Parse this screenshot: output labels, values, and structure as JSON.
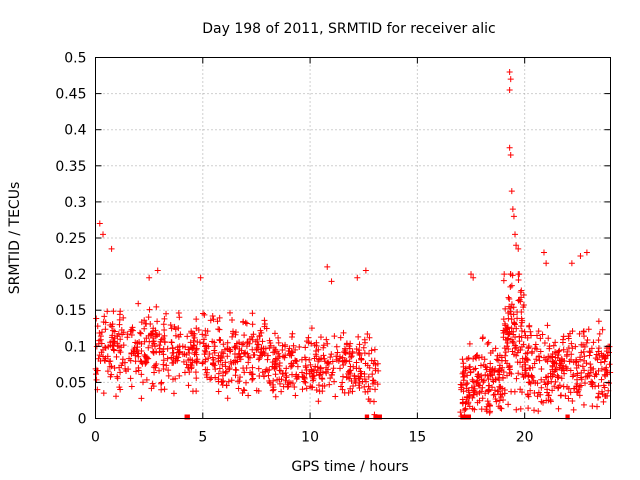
{
  "chart_data": {
    "type": "scatter",
    "title": "Day 198 of 2011, SRMTID for receiver alic",
    "xlabel": "GPS time / hours",
    "ylabel": "SRMTID / TECUs",
    "xlim": [
      0,
      24
    ],
    "ylim": [
      0,
      0.5
    ],
    "xticks": [
      "0",
      "5",
      "10",
      "15",
      "20"
    ],
    "xtick_values": [
      0,
      5,
      10,
      15,
      20
    ],
    "yticks": [
      "0",
      "0.05",
      "0.1",
      "0.15",
      "0.2",
      "0.25",
      "0.3",
      "0.35",
      "0.4",
      "0.45",
      "0.5"
    ],
    "ytick_values": [
      0,
      0.05,
      0.1,
      0.15,
      0.2,
      0.25,
      0.3,
      0.35,
      0.4,
      0.45,
      0.5
    ],
    "grid": true,
    "marker": "+",
    "color": "#ff0000",
    "segments": [
      {
        "x_start": 0.0,
        "x_end": 4.0,
        "y_mean": 0.095,
        "y_spread": 0.05,
        "count": 260
      },
      {
        "x_start": 4.0,
        "x_end": 8.0,
        "y_mean": 0.09,
        "y_spread": 0.045,
        "count": 260
      },
      {
        "x_start": 8.0,
        "x_end": 12.5,
        "y_mean": 0.07,
        "y_spread": 0.04,
        "count": 280
      },
      {
        "x_start": 12.5,
        "x_end": 13.2,
        "y_mean": 0.06,
        "y_spread": 0.05,
        "count": 40
      },
      {
        "x_start": 17.0,
        "x_end": 19.0,
        "y_mean": 0.05,
        "y_spread": 0.045,
        "count": 180
      },
      {
        "x_start": 19.0,
        "x_end": 20.0,
        "y_mean": 0.12,
        "y_spread": 0.08,
        "count": 120
      },
      {
        "x_start": 20.0,
        "x_end": 24.0,
        "y_mean": 0.07,
        "y_spread": 0.05,
        "count": 300
      }
    ],
    "peaks": [
      {
        "x": 0.2,
        "y": 0.27
      },
      {
        "x": 0.35,
        "y": 0.255
      },
      {
        "x": 0.75,
        "y": 0.235
      },
      {
        "x": 2.9,
        "y": 0.205
      },
      {
        "x": 2.5,
        "y": 0.195
      },
      {
        "x": 4.9,
        "y": 0.195
      },
      {
        "x": 10.8,
        "y": 0.21
      },
      {
        "x": 11.0,
        "y": 0.19
      },
      {
        "x": 12.2,
        "y": 0.195
      },
      {
        "x": 12.6,
        "y": 0.205
      },
      {
        "x": 17.5,
        "y": 0.2
      },
      {
        "x": 17.6,
        "y": 0.195
      },
      {
        "x": 19.3,
        "y": 0.48
      },
      {
        "x": 19.35,
        "y": 0.47
      },
      {
        "x": 19.3,
        "y": 0.455
      },
      {
        "x": 19.3,
        "y": 0.375
      },
      {
        "x": 19.35,
        "y": 0.365
      },
      {
        "x": 19.4,
        "y": 0.315
      },
      {
        "x": 19.45,
        "y": 0.29
      },
      {
        "x": 19.5,
        "y": 0.28
      },
      {
        "x": 19.55,
        "y": 0.255
      },
      {
        "x": 19.6,
        "y": 0.24
      },
      {
        "x": 19.7,
        "y": 0.235
      },
      {
        "x": 20.9,
        "y": 0.23
      },
      {
        "x": 21.0,
        "y": 0.215
      },
      {
        "x": 22.6,
        "y": 0.225
      },
      {
        "x": 22.9,
        "y": 0.23
      },
      {
        "x": 22.2,
        "y": 0.215
      }
    ],
    "gap_markers": [
      {
        "x_start": 4.15,
        "x_end": 4.4
      },
      {
        "x_start": 12.55,
        "x_end": 12.75
      },
      {
        "x_start": 12.95,
        "x_end": 13.35
      },
      {
        "x_start": 17.0,
        "x_end": 17.5
      },
      {
        "x_start": 21.9,
        "x_end": 22.1
      }
    ]
  }
}
